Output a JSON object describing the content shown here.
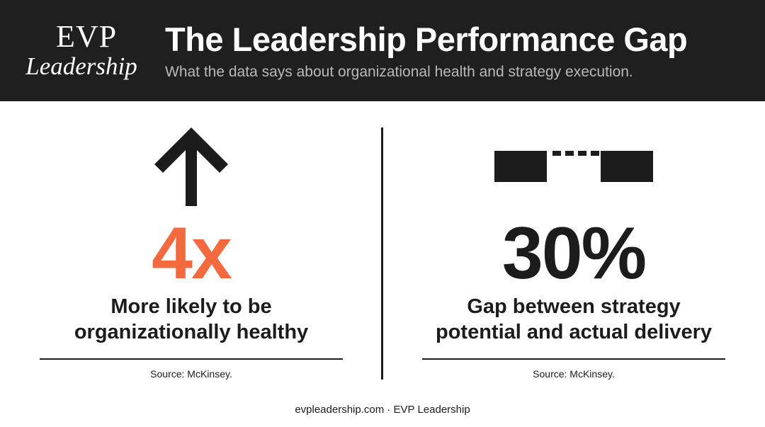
{
  "header": {
    "logo_top": "EVP",
    "logo_bottom": "Leadership",
    "title": "The Leadership Performance Gap",
    "subtitle": "What the data says about organizational health and strategy execution."
  },
  "left": {
    "icon": "arrow-up-icon",
    "stat": "4x",
    "stat_color": "#f26a3d",
    "desc_line1": "More likely to be",
    "desc_line2": "organizationally healthy",
    "source": "Source: McKinsey."
  },
  "right": {
    "icon": "gap-icon",
    "stat": "30%",
    "desc_line1": "Gap between strategy",
    "desc_line2": "potential and actual delivery",
    "source": "Source: McKinsey."
  },
  "footer": {
    "text": "evpleadership.com · EVP Leadership"
  },
  "colors": {
    "header_bg": "#1f1f1f",
    "accent": "#f26a3d",
    "text": "#1c1c1c"
  }
}
